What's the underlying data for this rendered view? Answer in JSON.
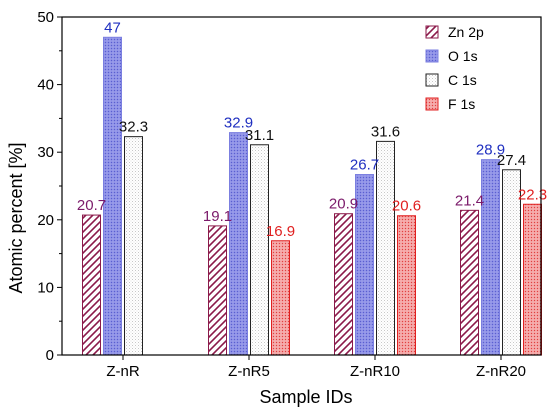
{
  "chart_data": {
    "type": "bar",
    "xlabel": "Sample IDs",
    "ylabel": "Atomic percent [%]",
    "ylim": [
      0,
      50
    ],
    "yticks": [
      0,
      10,
      20,
      30,
      40,
      50
    ],
    "categories": [
      "Z-nR",
      "Z-nR5",
      "Z-nR10",
      "Z-nR20"
    ],
    "legend_position": "top-right",
    "series": [
      {
        "name": "Zn 2p",
        "values": [
          20.7,
          19.1,
          20.9,
          21.4
        ],
        "labels": [
          "20.7",
          "19.1",
          "20.9",
          "21.4"
        ],
        "color": "#8b1a4a",
        "label_color": "#7b1a6a",
        "pattern": "diagonal-hatch"
      },
      {
        "name": "O 1s",
        "values": [
          47,
          32.9,
          26.7,
          28.9
        ],
        "labels": [
          "47",
          "32.9",
          "26.7",
          "28.9"
        ],
        "color": "#7b7fe0",
        "label_color": "#1f2fc0",
        "pattern": "blue-dots"
      },
      {
        "name": "C 1s",
        "values": [
          32.3,
          31.1,
          31.6,
          27.4
        ],
        "labels": [
          "32.3",
          "31.1",
          "31.6",
          "27.4"
        ],
        "color": "#222222",
        "label_color": "#111111",
        "pattern": "light-dots"
      },
      {
        "name": "F 1s",
        "values": [
          null,
          16.9,
          20.6,
          22.3
        ],
        "labels": [
          null,
          "16.9",
          "20.6",
          "22.3"
        ],
        "color": "#e02020",
        "label_color": "#e02020",
        "pattern": "red-dots"
      }
    ]
  }
}
